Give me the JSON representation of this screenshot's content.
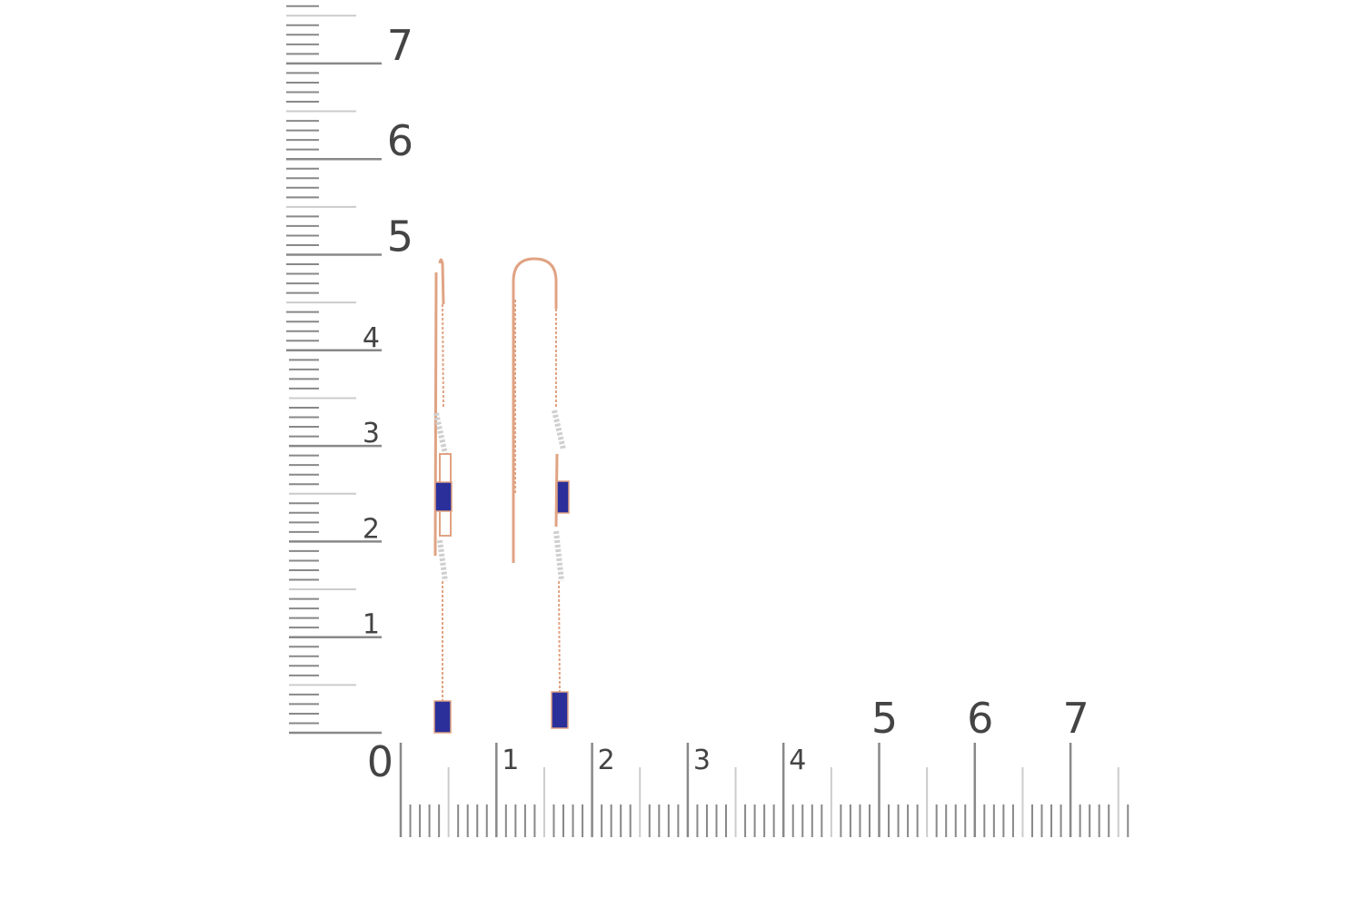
{
  "vertical_ruler": {
    "labels": [
      "1",
      "2",
      "3",
      "4",
      "5",
      "6",
      "7"
    ],
    "minor_per_unit": 10
  },
  "horizontal_ruler": {
    "labels": [
      "0",
      "1",
      "2",
      "3",
      "4",
      "5",
      "6",
      "7"
    ],
    "minor_per_unit": 10
  },
  "colors": {
    "ruler": "#888888",
    "ruler_light": "#cccccc",
    "label": "#444444",
    "gold": "#e0a383",
    "sapphire": "#2b2f9a",
    "diamond": "#d9d9d9"
  }
}
